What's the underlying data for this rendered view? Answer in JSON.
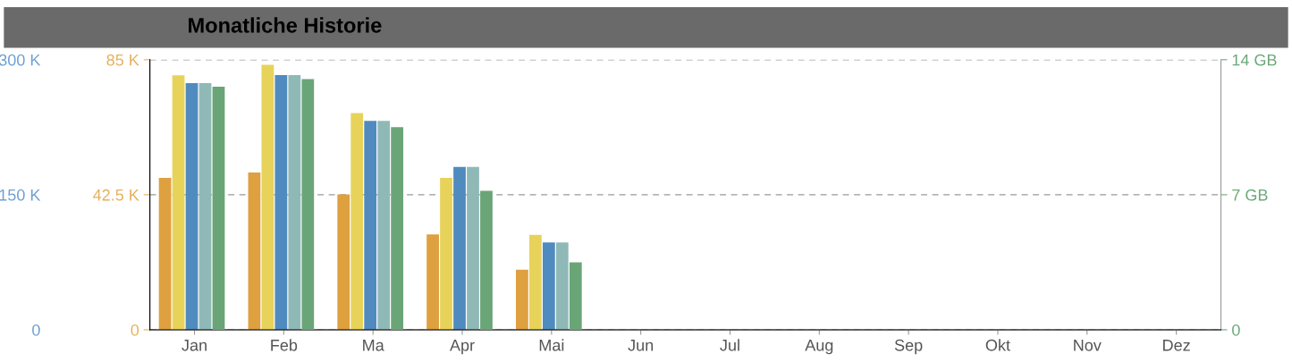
{
  "chart_data": {
    "type": "bar",
    "title": "Monatliche Historie",
    "categories": [
      "Jan",
      "Feb",
      "Ma",
      "Apr",
      "Mai",
      "Jun",
      "Jul",
      "Aug",
      "Sep",
      "Okt",
      "Nov",
      "Dez"
    ],
    "series": [
      {
        "color": "#dfa03f",
        "axis": "y",
        "values": [
          47800,
          49500,
          42600,
          30000,
          18900,
          0,
          0,
          0,
          0,
          0,
          0,
          0
        ]
      },
      {
        "color": "#e8d35a",
        "axis": "y",
        "values": [
          80100,
          83400,
          68200,
          47800,
          29900,
          0,
          0,
          0,
          0,
          0,
          0,
          0
        ]
      },
      {
        "color": "#508bbf",
        "axis": "y2",
        "values": [
          274000,
          283000,
          232000,
          181000,
          97000,
          0,
          0,
          0,
          0,
          0,
          0,
          0
        ]
      },
      {
        "color": "#8fb9b7",
        "axis": "y2",
        "values": [
          274000,
          283000,
          232000,
          181000,
          97000,
          0,
          0,
          0,
          0,
          0,
          0,
          0
        ]
      },
      {
        "color": "#6aa578",
        "axis": "y3",
        "values": [
          12.6,
          13.0,
          10.5,
          7.2,
          3.5,
          0,
          0,
          0,
          0,
          0,
          0,
          0
        ]
      }
    ],
    "ylim": [
      0,
      85000
    ],
    "yticks": [
      {
        "value": 0,
        "label": "0"
      },
      {
        "value": 42500,
        "label": "42.5 K"
      },
      {
        "value": 85000,
        "label": "85 K"
      }
    ],
    "y2lim": [
      0,
      300000
    ],
    "y2ticks": [
      {
        "value": 0,
        "label": "0"
      },
      {
        "value": 150000,
        "label": "150 K"
      },
      {
        "value": 300000,
        "label": "300 K"
      }
    ],
    "y3lim": [
      0,
      14
    ],
    "y3ticks": [
      {
        "value": 0,
        "label": "0"
      },
      {
        "value": 7,
        "label": "7 GB"
      },
      {
        "value": 14,
        "label": "14 GB"
      }
    ],
    "grid": "y",
    "legend": false
  }
}
